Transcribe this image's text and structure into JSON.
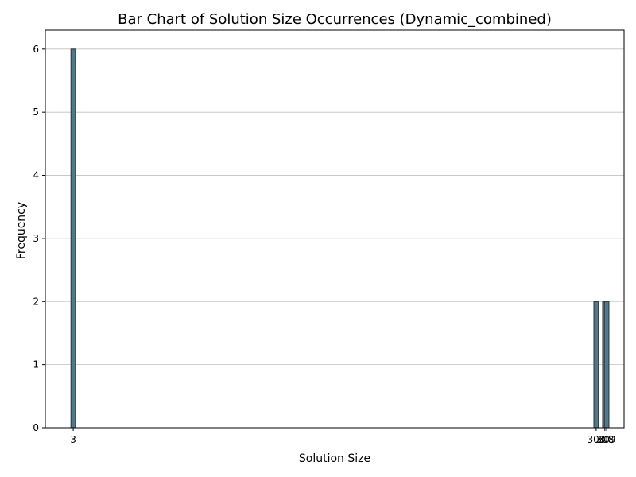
{
  "chart_data": {
    "type": "bar",
    "title": "Bar Chart of Solution Size Occurrences (Dynamic_combined)",
    "xlabel": "Solution Size",
    "ylabel": "Frequency",
    "x": [
      3,
      303,
      308,
      309
    ],
    "values": [
      6,
      2,
      2,
      2
    ],
    "x_tick_labels": [
      "3",
      "303",
      "308",
      "309"
    ],
    "xlim": [
      -13,
      319
    ],
    "ylim": [
      0,
      6.3
    ],
    "y_ticks": [
      0,
      1,
      2,
      3,
      4,
      5,
      6
    ],
    "grid": "y",
    "bar_color": "#4c7a91",
    "bar_edge_color": "#2f2f2f"
  }
}
